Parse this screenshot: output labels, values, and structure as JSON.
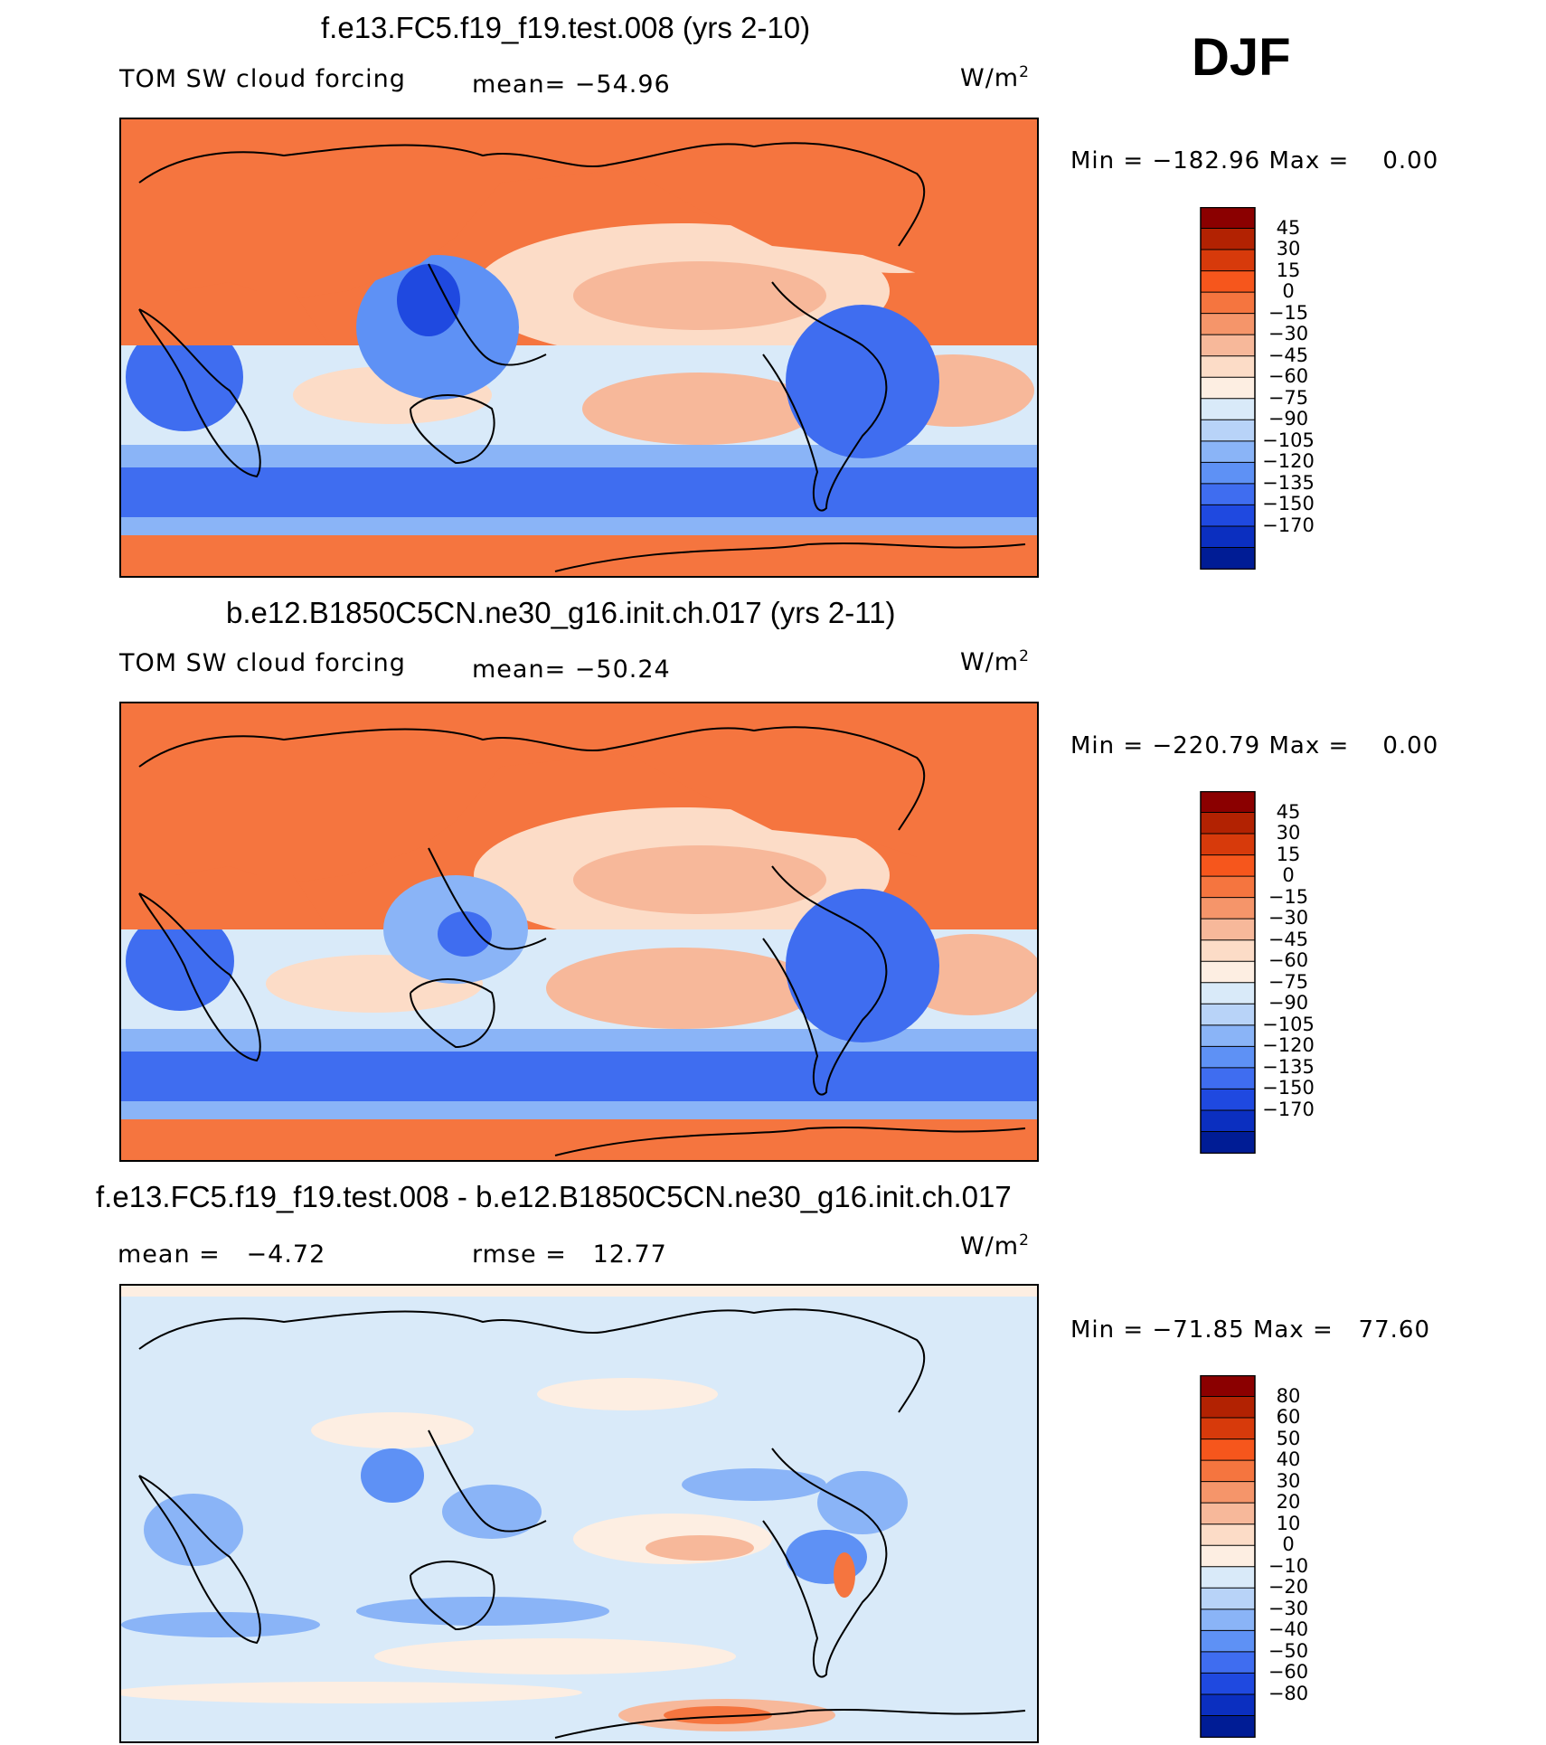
{
  "header": {
    "season": "DJF"
  },
  "chart_data": [
    {
      "type": "heatmap",
      "title": "f.e13.FC5.f19_f19.test.008 (yrs 2-10)",
      "variable": "TOM SW cloud forcing",
      "mean_label": "mean=",
      "mean": "−54.96",
      "units": "W/m",
      "units_exp": "2",
      "min_label": "Min  =",
      "min": "−182.96",
      "max_label": "Max  =",
      "max": "0.00",
      "colorbar": {
        "labels": [
          "45",
          "30",
          "15",
          "0",
          "−15",
          "−30",
          "−45",
          "−60",
          "−75",
          "−90",
          "−105",
          "−120",
          "−135",
          "−150",
          "−170"
        ],
        "colors": [
          "#8b0000",
          "#b22202",
          "#d73a0b",
          "#f6561c",
          "#f5753f",
          "#f5956a",
          "#f7b89a",
          "#fcdcc7",
          "#fdeee2",
          "#d9eaf9",
          "#b8d3f8",
          "#8ab4f7",
          "#5e91f5",
          "#3f6df0",
          "#1f49e0",
          "#0b2fc0",
          "#001c95"
        ]
      }
    },
    {
      "type": "heatmap",
      "title": "b.e12.B1850C5CN.ne30_g16.init.ch.017 (yrs 2-11)",
      "variable": "TOM SW cloud forcing",
      "mean_label": "mean=",
      "mean": "−50.24",
      "units": "W/m",
      "units_exp": "2",
      "min_label": "Min  =",
      "min": "−220.79",
      "max_label": "Max  =",
      "max": "0.00",
      "colorbar": {
        "labels": [
          "45",
          "30",
          "15",
          "0",
          "−15",
          "−30",
          "−45",
          "−60",
          "−75",
          "−90",
          "−105",
          "−120",
          "−135",
          "−150",
          "−170"
        ],
        "colors": [
          "#8b0000",
          "#b22202",
          "#d73a0b",
          "#f6561c",
          "#f5753f",
          "#f5956a",
          "#f7b89a",
          "#fcdcc7",
          "#fdeee2",
          "#d9eaf9",
          "#b8d3f8",
          "#8ab4f7",
          "#5e91f5",
          "#3f6df0",
          "#1f49e0",
          "#0b2fc0",
          "#001c95"
        ]
      }
    },
    {
      "type": "heatmap",
      "title": "f.e13.FC5.f19_f19.test.008 - b.e12.B1850C5CN.ne30_g16.init.ch.017",
      "mean_label": "mean  =",
      "mean": "−4.72",
      "rmse_label": "rmse  =",
      "rmse": "12.77",
      "units": "W/m",
      "units_exp": "2",
      "min_label": "Min  =",
      "min": "−71.85",
      "max_label": "Max  =",
      "max": "77.60",
      "colorbar": {
        "labels": [
          "80",
          "60",
          "50",
          "40",
          "30",
          "20",
          "10",
          "0",
          "−10",
          "−20",
          "−30",
          "−40",
          "−50",
          "−60",
          "−80"
        ],
        "colors": [
          "#8b0000",
          "#b22202",
          "#d73a0b",
          "#f6561c",
          "#f5753f",
          "#f5956a",
          "#f7b89a",
          "#fcdcc7",
          "#fdeee2",
          "#d9eaf9",
          "#b8d3f8",
          "#8ab4f7",
          "#5e91f5",
          "#3f6df0",
          "#1f49e0",
          "#0b2fc0",
          "#001c95"
        ]
      }
    }
  ]
}
